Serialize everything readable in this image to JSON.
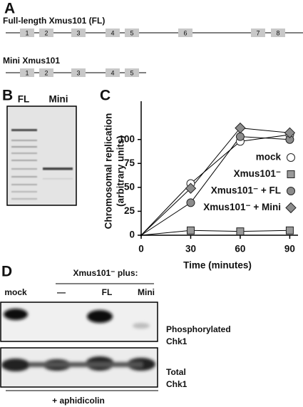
{
  "panels": {
    "A": {
      "letter": "A",
      "genes": [
        {
          "label": "Full-length Xmus101 (FL)",
          "exons": [
            "1",
            "2",
            "3",
            "4",
            "5",
            "6",
            "7",
            "8"
          ]
        },
        {
          "label": "Mini Xmus101",
          "exons": [
            "1",
            "2",
            "3",
            "4",
            "5"
          ]
        }
      ]
    },
    "B": {
      "letter": "B",
      "lanes": [
        "FL",
        "Mini"
      ]
    },
    "D": {
      "letter": "D",
      "group_label": "Xmus101⁻ plus:",
      "lanes": [
        "mock",
        "—",
        "FL",
        "Mini"
      ],
      "blots": [
        [
          "Phosphorylated",
          "Chk1"
        ],
        [
          "Total",
          "Chk1"
        ]
      ],
      "condition": "+ aphidicolin"
    }
  },
  "chart_data": {
    "type": "line",
    "letter": "C",
    "x_label": "Time (minutes)",
    "y_label": [
      "Chromosomal replication",
      "(arbitrary units)"
    ],
    "x": [
      0,
      30,
      60,
      90
    ],
    "xlim": [
      0,
      95
    ],
    "xticks": [
      0,
      30,
      60,
      90
    ],
    "ylim": [
      0,
      140
    ],
    "yticks": [
      0,
      25,
      50,
      75,
      100
    ],
    "series": [
      {
        "name": "mock",
        "color": "#ffffff",
        "marker": "circle",
        "values": [
          0,
          54,
          98,
          105
        ]
      },
      {
        "name": "Xmus101⁻",
        "color": "#999999",
        "marker": "square",
        "values": [
          0,
          5,
          4,
          5
        ]
      },
      {
        "name": "Xmus101⁻ + FL",
        "color": "#8c8c8c",
        "marker": "circle",
        "values": [
          0,
          34,
          103,
          100
        ]
      },
      {
        "name": "Xmus101⁻ + Mini",
        "color": "#8c8c8c",
        "marker": "diamond",
        "values": [
          0,
          49,
          112,
          107
        ]
      }
    ]
  }
}
